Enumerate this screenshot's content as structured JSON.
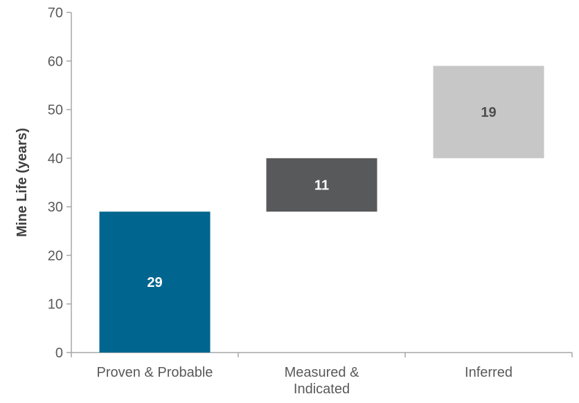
{
  "chart_data": {
    "type": "bar",
    "subtype": "waterfall",
    "title": "",
    "xlabel": "",
    "ylabel": "Mine Life (years)",
    "ylim": [
      0,
      70
    ],
    "yticks": [
      "0",
      "10",
      "20",
      "30",
      "40",
      "50",
      "60",
      "70"
    ],
    "grid": false,
    "legend": "none",
    "categories": [
      [
        "Proven & Probable"
      ],
      [
        "Measured &",
        "Indicated"
      ],
      [
        "Inferred"
      ]
    ],
    "bars": [
      {
        "category": "Proven & Probable",
        "base": 0,
        "value": 29,
        "label": "29",
        "color": "#00668f",
        "label_color": "#ffffff"
      },
      {
        "category": "Measured & Indicated",
        "base": 29,
        "value": 11,
        "label": "11",
        "color": "#58595b",
        "label_color": "#ffffff"
      },
      {
        "category": "Inferred",
        "base": 40,
        "value": 19,
        "label": "19",
        "color": "#c6c7c6",
        "label_color": "#4d4d4d"
      }
    ]
  }
}
